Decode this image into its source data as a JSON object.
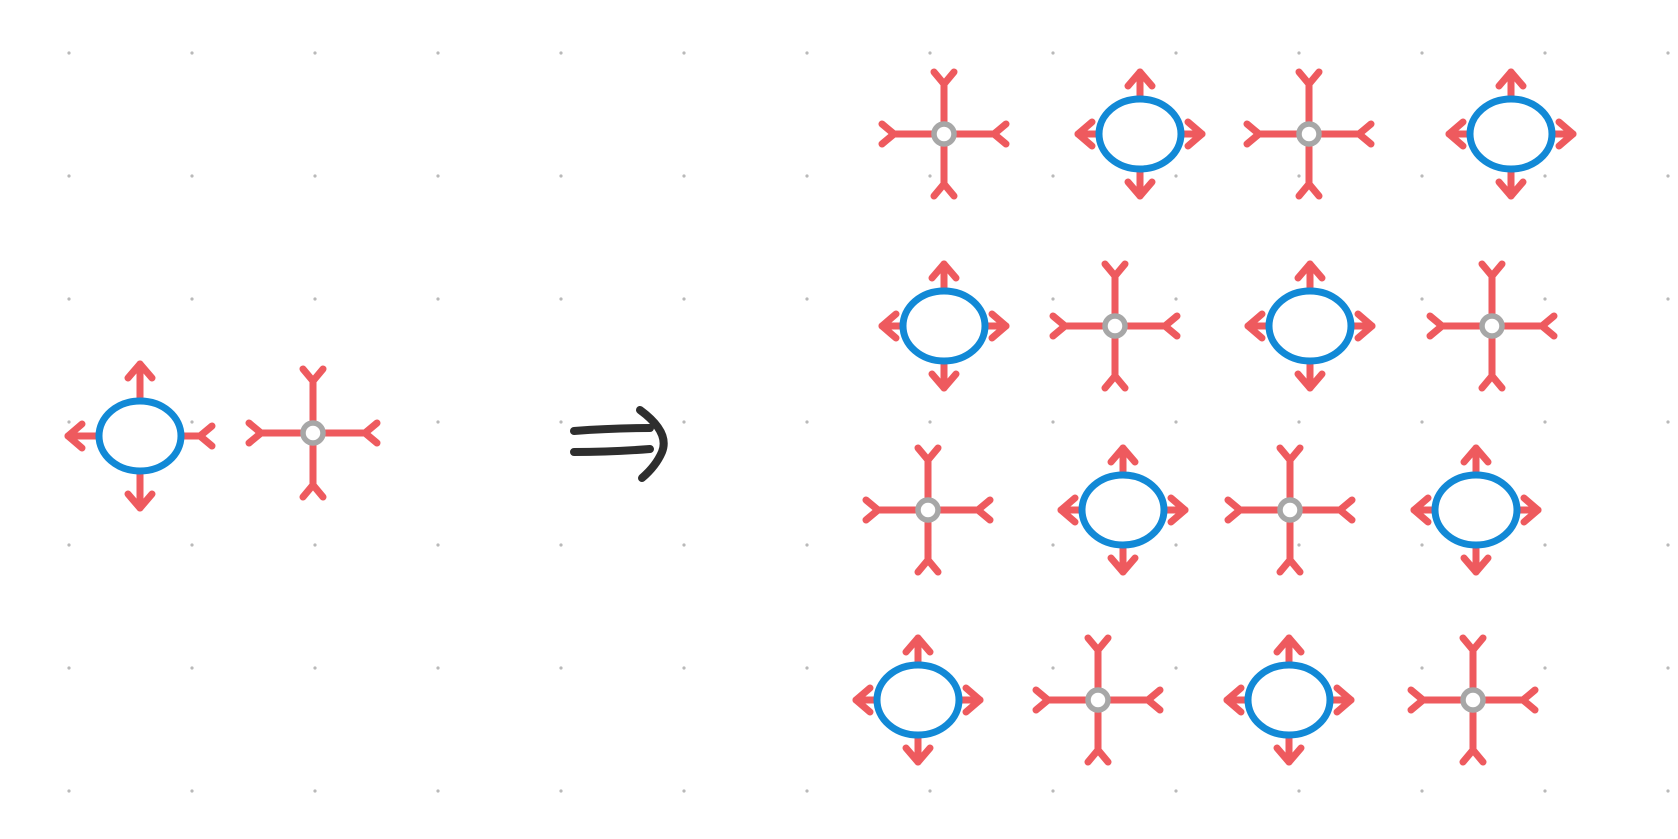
{
  "colors": {
    "background": "#ffffff",
    "grid_dot": "#b9b9b9",
    "edge": "#ee5a5e",
    "node_primary": "#1289d6",
    "node_secondary": "#a7a7a7",
    "implies_symbol": "#2e2e2e"
  },
  "diagram": {
    "left_pattern": {
      "primary_nodes": 1,
      "secondary_nodes": 1,
      "primary_node_edge_directions": [
        "up-out",
        "left-out",
        "down-out",
        "right-in"
      ],
      "secondary_node_edge_directions": [
        "up-in",
        "left-in",
        "down-in",
        "right-in"
      ]
    },
    "relation_symbol": "implies-arrow",
    "right_grid": {
      "rows": 4,
      "columns": 4,
      "arrangement": "checkerboard",
      "primary_nodes": 8,
      "secondary_nodes": 8
    }
  }
}
